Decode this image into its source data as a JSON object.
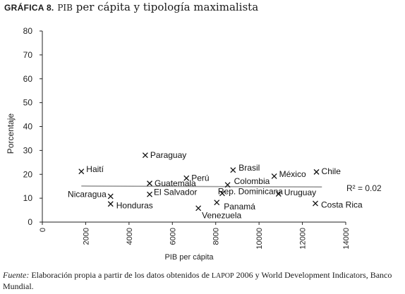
{
  "title": {
    "number": "GRÁFICA 8.",
    "small_caps": "PIB",
    "rest": " per cápita y tipología maximalista"
  },
  "chart_data": {
    "type": "scatter",
    "xlabel": "PIB per cápita",
    "ylabel": "Porcentaje",
    "xlim": [
      0,
      14000
    ],
    "ylim": [
      0,
      80
    ],
    "xticks": [
      0,
      2000,
      4000,
      6000,
      8000,
      10000,
      12000,
      14000
    ],
    "yticks": [
      0,
      10,
      20,
      30,
      40,
      50,
      60,
      70,
      80
    ],
    "points": [
      {
        "label": "Haití",
        "x": 1800,
        "y": 21.2
      },
      {
        "label": "Paraguay",
        "x": 4750,
        "y": 28.0
      },
      {
        "label": "Brasil",
        "x": 8800,
        "y": 21.8
      },
      {
        "label": "México",
        "x": 10700,
        "y": 19.2
      },
      {
        "label": "Chile",
        "x": 12650,
        "y": 21.0
      },
      {
        "label": "Perú",
        "x": 6650,
        "y": 18.4
      },
      {
        "label": "Guatemala",
        "x": 4950,
        "y": 16.2
      },
      {
        "label": "Colombia",
        "x": 8550,
        "y": 15.6
      },
      {
        "label": "Nicaragua",
        "x": 3150,
        "y": 10.8
      },
      {
        "label": "El Salvador",
        "x": 4950,
        "y": 11.6
      },
      {
        "label": "Rep. Dominicana",
        "x": 8300,
        "y": 12.0
      },
      {
        "label": "Uruguay",
        "x": 10900,
        "y": 11.8
      },
      {
        "label": "Honduras",
        "x": 3150,
        "y": 7.6
      },
      {
        "label": "Panamá",
        "x": 8050,
        "y": 8.2
      },
      {
        "label": "Costa Rica",
        "x": 12600,
        "y": 7.8
      },
      {
        "label": "Venezuela",
        "x": 7200,
        "y": 5.8
      }
    ],
    "trendline": {
      "x": [
        1800,
        12900
      ],
      "y": [
        15.1,
        14.7
      ]
    },
    "annotation": "R² = 0.02"
  },
  "source": {
    "label": "Fuente:",
    "text_before": " Elaboración propia a partir de los datos obtenidos de ",
    "small_caps": "LAPOP",
    "text_after": " 2006 y World Development Indicators, Banco Mundial."
  }
}
